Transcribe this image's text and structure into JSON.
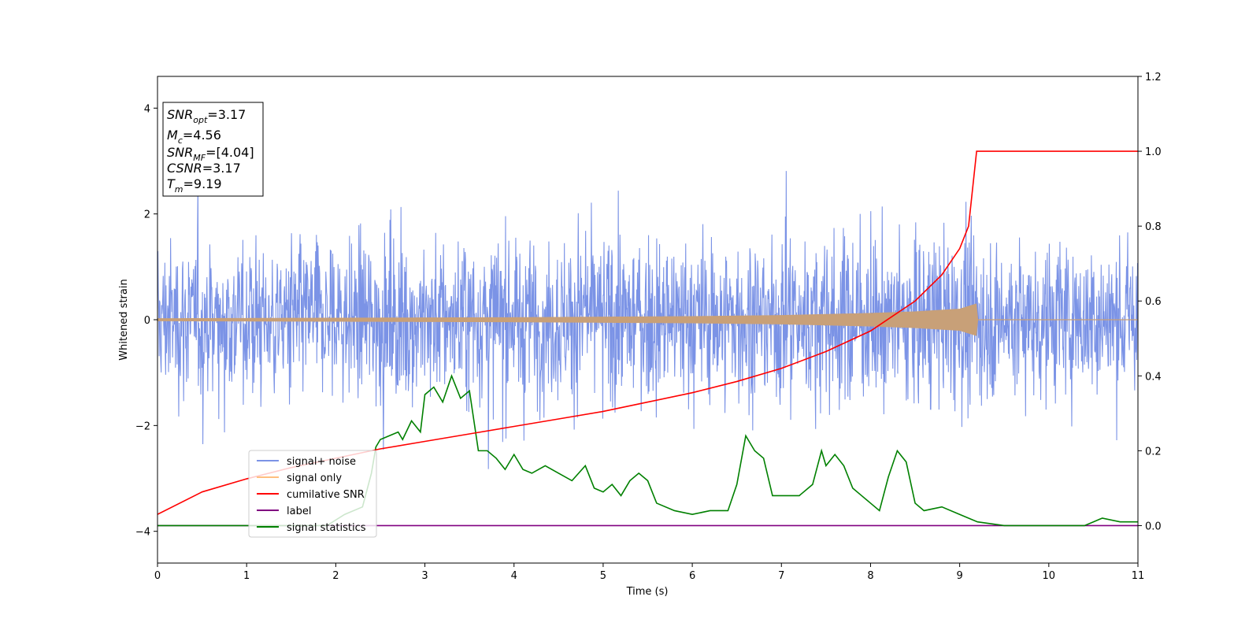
{
  "chart_data": {
    "type": "line",
    "title": "",
    "xlabel": "Time (s)",
    "ylabel": "Whitened strain",
    "xlim": [
      0,
      11
    ],
    "ylim_left": [
      -4.6,
      4.6
    ],
    "ylim_right": [
      -0.1,
      1.2
    ],
    "x_ticks": [
      "0",
      "1",
      "2",
      "3",
      "4",
      "5",
      "6",
      "7",
      "8",
      "9",
      "10",
      "11"
    ],
    "y_ticks_left": [
      "−4",
      "−2",
      "0",
      "2",
      "4"
    ],
    "y_ticks_right": [
      "0.0",
      "0.2",
      "0.4",
      "0.6",
      "0.8",
      "1.0",
      "1.2"
    ],
    "grid": false,
    "legend_position": "lower-left",
    "colors": {
      "noise": "#7b93e6",
      "signal": "#c8a078",
      "snr": "#ff0000",
      "label": "#800080",
      "stats": "#008000"
    },
    "info_box": {
      "snr_opt": "SNR_opt=3.17",
      "mc": "M_c=4.56",
      "snr_mf": "SNR_MF=[4.04]",
      "csnr": "CSNR=3.17",
      "tm": "T_m=9.19"
    },
    "series": [
      {
        "name": "signal+ noise",
        "axis": "left",
        "envelope": [
          [
            0,
            2.3
          ],
          [
            1,
            2.4
          ],
          [
            2,
            2.4
          ],
          [
            3,
            2.5
          ],
          [
            4,
            2.5
          ],
          [
            5,
            2.5
          ],
          [
            6,
            2.5
          ],
          [
            7,
            2.5
          ],
          [
            8,
            2.6
          ],
          [
            9,
            2.5
          ],
          [
            10,
            2.4
          ],
          [
            11,
            2.3
          ]
        ]
      },
      {
        "name": "signal only",
        "axis": "left",
        "envelope": [
          [
            0,
            0.02
          ],
          [
            2,
            0.03
          ],
          [
            4,
            0.04
          ],
          [
            6,
            0.06
          ],
          [
            7,
            0.08
          ],
          [
            8,
            0.12
          ],
          [
            8.5,
            0.15
          ],
          [
            9.0,
            0.2
          ],
          [
            9.19,
            0.3
          ],
          [
            9.2,
            0.0
          ],
          [
            11,
            0.0
          ]
        ]
      },
      {
        "name": "cumilative SNR",
        "axis": "right",
        "points": [
          [
            0,
            0.03
          ],
          [
            0.5,
            0.09
          ],
          [
            1,
            0.125
          ],
          [
            1.5,
            0.155
          ],
          [
            2,
            0.18
          ],
          [
            2.5,
            0.205
          ],
          [
            3,
            0.225
          ],
          [
            3.5,
            0.245
          ],
          [
            4,
            0.265
          ],
          [
            4.5,
            0.285
          ],
          [
            5,
            0.305
          ],
          [
            5.5,
            0.33
          ],
          [
            6,
            0.355
          ],
          [
            6.5,
            0.385
          ],
          [
            7,
            0.42
          ],
          [
            7.5,
            0.465
          ],
          [
            8,
            0.52
          ],
          [
            8.5,
            0.6
          ],
          [
            8.8,
            0.67
          ],
          [
            9.0,
            0.74
          ],
          [
            9.1,
            0.8
          ],
          [
            9.19,
            1.0
          ],
          [
            11,
            1.0
          ]
        ]
      },
      {
        "name": "label",
        "axis": "right",
        "points": [
          [
            0,
            0.0
          ],
          [
            11,
            0.0
          ]
        ]
      },
      {
        "name": "signal statistics",
        "axis": "right",
        "points": [
          [
            0,
            0.0
          ],
          [
            1.0,
            0.0
          ],
          [
            1.9,
            0.0
          ],
          [
            2.1,
            0.03
          ],
          [
            2.3,
            0.05
          ],
          [
            2.4,
            0.14
          ],
          [
            2.45,
            0.21
          ],
          [
            2.5,
            0.23
          ],
          [
            2.6,
            0.24
          ],
          [
            2.7,
            0.25
          ],
          [
            2.75,
            0.23
          ],
          [
            2.85,
            0.28
          ],
          [
            2.95,
            0.25
          ],
          [
            3.0,
            0.35
          ],
          [
            3.1,
            0.37
          ],
          [
            3.2,
            0.33
          ],
          [
            3.3,
            0.4
          ],
          [
            3.4,
            0.34
          ],
          [
            3.5,
            0.36
          ],
          [
            3.6,
            0.2
          ],
          [
            3.7,
            0.2
          ],
          [
            3.8,
            0.18
          ],
          [
            3.9,
            0.15
          ],
          [
            4.0,
            0.19
          ],
          [
            4.1,
            0.15
          ],
          [
            4.2,
            0.14
          ],
          [
            4.35,
            0.16
          ],
          [
            4.5,
            0.14
          ],
          [
            4.65,
            0.12
          ],
          [
            4.8,
            0.16
          ],
          [
            4.9,
            0.1
          ],
          [
            5.0,
            0.09
          ],
          [
            5.1,
            0.11
          ],
          [
            5.2,
            0.08
          ],
          [
            5.3,
            0.12
          ],
          [
            5.4,
            0.14
          ],
          [
            5.5,
            0.12
          ],
          [
            5.6,
            0.06
          ],
          [
            5.8,
            0.04
          ],
          [
            6.0,
            0.03
          ],
          [
            6.2,
            0.04
          ],
          [
            6.4,
            0.04
          ],
          [
            6.5,
            0.11
          ],
          [
            6.6,
            0.24
          ],
          [
            6.7,
            0.2
          ],
          [
            6.8,
            0.18
          ],
          [
            6.9,
            0.08
          ],
          [
            7.0,
            0.08
          ],
          [
            7.2,
            0.08
          ],
          [
            7.35,
            0.11
          ],
          [
            7.45,
            0.2
          ],
          [
            7.5,
            0.16
          ],
          [
            7.6,
            0.19
          ],
          [
            7.7,
            0.16
          ],
          [
            7.8,
            0.1
          ],
          [
            7.9,
            0.08
          ],
          [
            8.0,
            0.06
          ],
          [
            8.1,
            0.04
          ],
          [
            8.2,
            0.13
          ],
          [
            8.3,
            0.2
          ],
          [
            8.4,
            0.17
          ],
          [
            8.5,
            0.06
          ],
          [
            8.6,
            0.04
          ],
          [
            8.8,
            0.05
          ],
          [
            9.0,
            0.03
          ],
          [
            9.2,
            0.01
          ],
          [
            9.5,
            0.0
          ],
          [
            10.0,
            0.0
          ],
          [
            10.4,
            0.0
          ],
          [
            10.5,
            0.01
          ],
          [
            10.6,
            0.02
          ],
          [
            10.8,
            0.01
          ],
          [
            11,
            0.01
          ]
        ]
      }
    ]
  }
}
